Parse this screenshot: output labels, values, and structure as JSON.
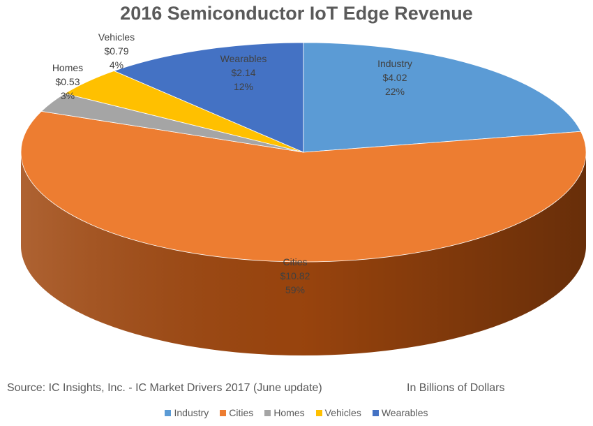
{
  "chart_data": {
    "type": "pie",
    "title": "2016 Semiconductor IoT Edge Revenue",
    "categories": [
      "Industry",
      "Cities",
      "Homes",
      "Vehicles",
      "Wearables"
    ],
    "values": [
      4.02,
      10.82,
      0.53,
      0.79,
      2.14
    ],
    "value_labels": [
      "$4.02",
      "$10.82",
      "$0.53",
      "$0.79",
      "$2.14"
    ],
    "percent_labels": [
      "22%",
      "59%",
      "3%",
      "4%",
      "12%"
    ],
    "colors": [
      "#5b9bd5",
      "#ed7d31",
      "#a5a5a5",
      "#ffc000",
      "#4472c4"
    ],
    "side_colors": [
      "#2e75b6",
      "#a0470e",
      "#7b7b7b",
      "#bf9000",
      "#2f5597"
    ],
    "legend_position": "bottom",
    "source": "Source: IC Insights, Inc. - IC Market Drivers 2017 (June update)",
    "units": "In Billions of Dollars"
  }
}
